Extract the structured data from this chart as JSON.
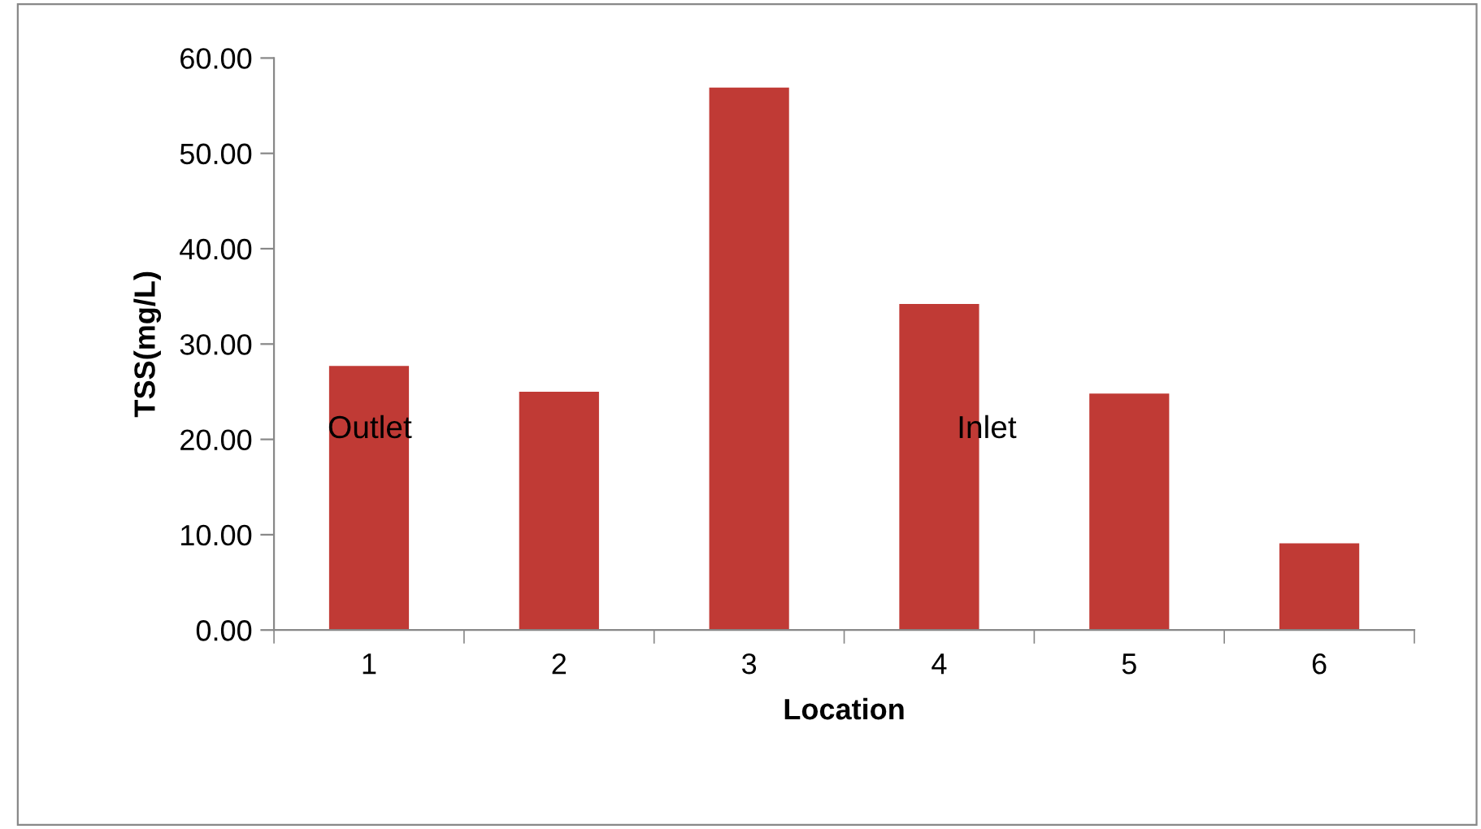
{
  "chart_data": {
    "type": "bar",
    "xlabel": "Location",
    "ylabel": "TSS(mg/L)",
    "categories": [
      "1",
      "2",
      "3",
      "4",
      "5",
      "6"
    ],
    "values": [
      27.7,
      25.0,
      56.9,
      34.2,
      24.8,
      9.1
    ],
    "color": "#c03a35",
    "ylim": [
      0,
      60
    ],
    "yticks": [
      {
        "value": 0,
        "label": "0.00"
      },
      {
        "value": 10,
        "label": "10.00"
      },
      {
        "value": 20,
        "label": "20.00"
      },
      {
        "value": 30,
        "label": "30.00"
      },
      {
        "value": 40,
        "label": "40.00"
      },
      {
        "value": 50,
        "label": "50.00"
      },
      {
        "value": 60,
        "label": "60.00"
      }
    ],
    "grid": false,
    "annotations": [
      "Outlet",
      "Inlet"
    ]
  }
}
